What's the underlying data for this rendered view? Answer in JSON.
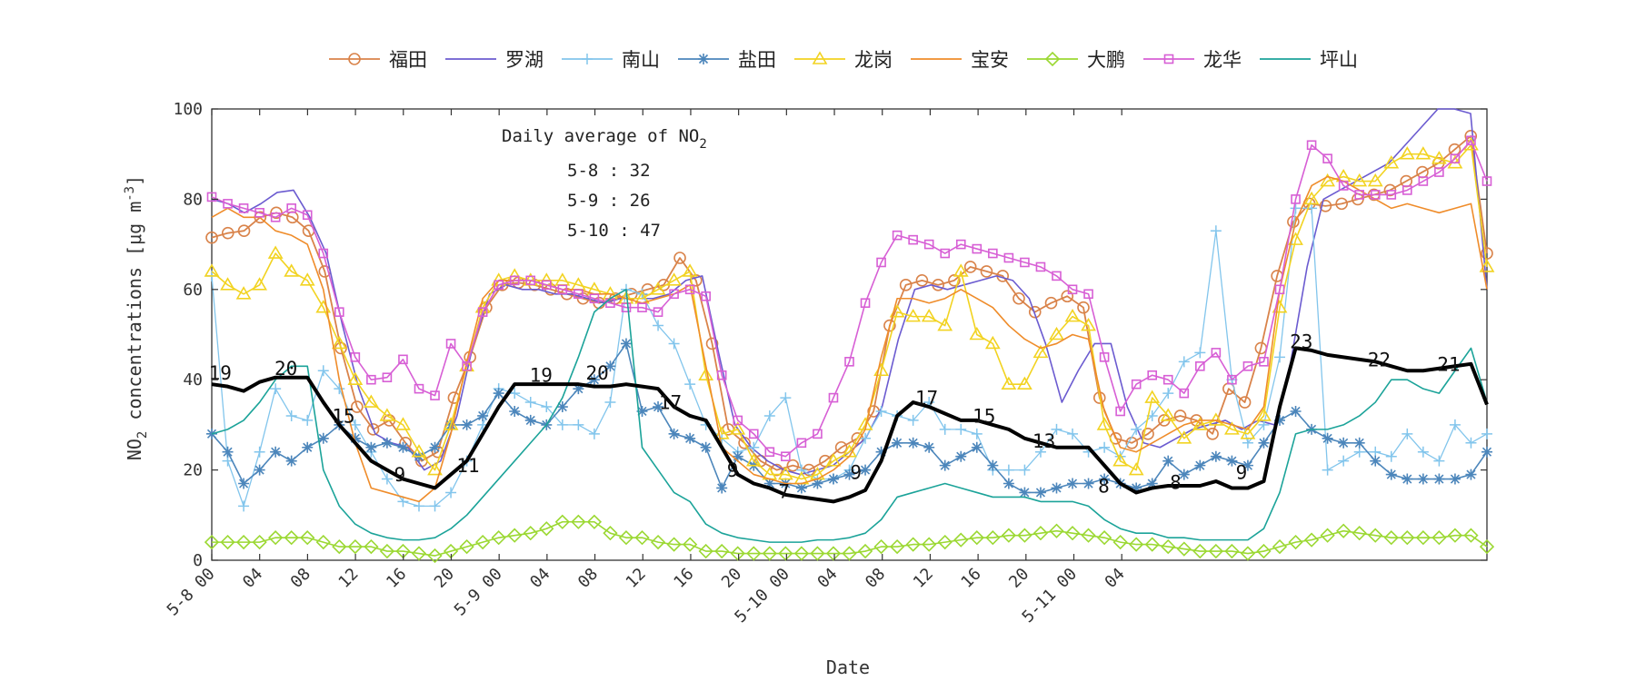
{
  "chart_data": {
    "type": "line",
    "xlabel": "Date",
    "ylabel": "NO2 concentrations [μg m-3]",
    "ylim": [
      0,
      100
    ],
    "yticks": [
      0,
      20,
      40,
      60,
      80,
      100
    ],
    "x_range_hours": [
      0,
      78
    ],
    "xtick_labels": [
      "5-8 00",
      "04",
      "08",
      "12",
      "16",
      "20",
      "5-9 00",
      "04",
      "08",
      "12",
      "16",
      "20",
      "5-10 00",
      "04",
      "08",
      "12",
      "16",
      "20",
      "5-11 00",
      "04"
    ],
    "annotation": {
      "title": "Daily average of NO",
      "title_sub": "2",
      "lines": [
        "5-8 : 32",
        "5-9 : 26",
        "5-10 : 47"
      ]
    },
    "legend": {
      "placement": "top",
      "entries": [
        "福田",
        "罗湖",
        "南山",
        "盐田",
        "龙岗",
        "宝安",
        "大鹏",
        "龙华",
        "坪山"
      ]
    },
    "series": [
      {
        "name": "福田",
        "color": "#d9834a",
        "marker": "circle",
        "width": 1.8,
        "values": [
          71.5,
          72.5,
          73,
          76,
          77,
          76,
          73,
          64,
          47,
          34,
          29,
          31,
          26,
          22,
          24,
          36,
          45,
          56,
          61,
          61.5,
          61,
          60,
          59,
          58,
          57,
          58,
          59,
          60,
          61,
          67,
          62,
          48,
          29,
          26,
          22,
          20,
          21,
          20,
          22,
          25,
          27,
          33,
          52,
          61,
          62,
          61,
          62,
          65,
          64,
          63,
          58,
          55,
          57,
          58.5,
          56,
          36,
          27,
          26,
          28,
          31,
          32,
          31,
          28,
          38,
          35,
          47,
          63,
          75,
          79,
          78.5,
          79,
          80,
          81,
          82,
          84,
          86,
          88,
          91,
          94,
          68
        ]
      },
      {
        "name": "罗湖",
        "color": "#6b5bd0",
        "marker": "none",
        "width": 1.6,
        "values": [
          80,
          79,
          77,
          79,
          81.5,
          82,
          76,
          68,
          52,
          38,
          28,
          26,
          25,
          20,
          22,
          32,
          48,
          59,
          61,
          60,
          60,
          59,
          59,
          58,
          57,
          58,
          58,
          58,
          59,
          62,
          63,
          46,
          30,
          25,
          22,
          20,
          19,
          20,
          21,
          24,
          27,
          34,
          49,
          60,
          61,
          60,
          61,
          62,
          63,
          62,
          58,
          48,
          35,
          42,
          48,
          48,
          34,
          26,
          25,
          27,
          29,
          30,
          31,
          29,
          31,
          30,
          44,
          65,
          80,
          82,
          84,
          86,
          88,
          92,
          96,
          100,
          100,
          99,
          60
        ]
      },
      {
        "name": "南山",
        "color": "#82c5ec",
        "marker": "plus",
        "width": 1.3,
        "values": [
          63,
          22,
          12,
          24,
          38,
          32,
          31,
          42,
          38,
          30,
          24,
          18,
          13,
          12,
          12,
          15,
          22,
          30,
          38,
          37,
          35,
          34,
          30,
          30,
          28,
          35,
          60,
          59,
          52,
          48,
          39,
          30,
          27,
          24,
          25,
          32,
          36,
          20,
          18,
          18,
          20,
          27,
          33,
          32,
          31,
          35,
          29,
          29,
          28,
          20,
          20,
          20,
          24,
          29,
          28,
          24,
          25,
          23,
          29,
          32,
          37,
          44,
          46,
          73,
          40,
          26,
          30,
          45,
          78,
          78,
          20,
          22,
          24,
          24,
          23,
          28,
          24,
          22,
          30,
          26,
          28
        ]
      },
      {
        "name": "盐田",
        "color": "#4c86bb",
        "marker": "asterisk",
        "width": 1.6,
        "values": [
          28,
          24,
          17,
          20,
          24,
          22,
          25,
          27,
          30,
          27,
          25,
          26,
          25,
          23,
          25,
          30,
          30,
          32,
          37,
          33,
          31,
          30,
          34,
          38,
          40,
          43,
          48,
          33,
          34,
          28,
          27,
          25,
          16,
          23,
          21,
          17,
          17,
          16,
          17,
          18,
          19,
          20,
          24,
          26,
          26,
          25,
          21,
          23,
          25,
          21,
          17,
          15,
          15,
          16,
          17,
          17,
          18,
          17,
          16,
          17,
          22,
          19,
          21,
          23,
          22,
          21,
          26,
          31,
          33,
          29,
          27,
          26,
          26,
          22,
          19,
          18,
          18,
          18,
          18,
          19,
          24
        ]
      },
      {
        "name": "龙岗",
        "color": "#f2d321",
        "marker": "triangle",
        "width": 1.6,
        "values": [
          64,
          61,
          59,
          61,
          68,
          64,
          62,
          56,
          48,
          40,
          35,
          32,
          30,
          24,
          20,
          30,
          43,
          56,
          62,
          63,
          62,
          62,
          62,
          61,
          60,
          59,
          58,
          58,
          60,
          62,
          64,
          41,
          28,
          29,
          22,
          19,
          19,
          18,
          19,
          22,
          24,
          30,
          42,
          55,
          54,
          54,
          52,
          64,
          50,
          48,
          39,
          39,
          46,
          50,
          54,
          52,
          30,
          22,
          20,
          36,
          32,
          27,
          30,
          31,
          29,
          28,
          32,
          56,
          71,
          80,
          84,
          85,
          84,
          84,
          88,
          90,
          90,
          89,
          88,
          92,
          65
        ]
      },
      {
        "name": "宝安",
        "color": "#ef8c2a",
        "marker": "none",
        "width": 1.6,
        "values": [
          76,
          78,
          76,
          76,
          73,
          72,
          70,
          60,
          40,
          26,
          16,
          15,
          14,
          13,
          16,
          28,
          44,
          58,
          62,
          62,
          62,
          61,
          60,
          60,
          59,
          59,
          58,
          57,
          58,
          59,
          61,
          43,
          25,
          22,
          19,
          18,
          17,
          17,
          18,
          20,
          23,
          29,
          45,
          58,
          58,
          57,
          58,
          60,
          58,
          56,
          52,
          49,
          47,
          48,
          50,
          49,
          33,
          25,
          24,
          26,
          28,
          30,
          31,
          31,
          30,
          29,
          34,
          60,
          75,
          83,
          85,
          84,
          82,
          80,
          78,
          79,
          78,
          77,
          78,
          79,
          60
        ]
      },
      {
        "name": "大鹏",
        "color": "#9bd832",
        "marker": "diamond",
        "width": 1.6,
        "values": [
          4,
          4,
          4,
          4,
          5,
          5,
          5,
          4,
          3,
          3,
          3,
          2,
          2,
          1.5,
          1,
          2,
          3,
          4,
          5,
          5.5,
          6,
          7,
          8.5,
          8.5,
          8.5,
          6,
          5,
          5,
          4,
          3.5,
          3.5,
          2,
          2,
          1.5,
          1.5,
          1.5,
          1.5,
          1.5,
          1.5,
          1.5,
          1.5,
          2,
          3,
          3,
          3.5,
          3.5,
          4,
          4.5,
          5,
          5,
          5.5,
          5.5,
          6,
          6.5,
          6,
          5.5,
          5,
          4,
          3.5,
          3.5,
          3,
          2.5,
          2,
          2,
          2,
          1.5,
          2,
          3,
          4,
          4.5,
          5.5,
          6.5,
          6,
          5.5,
          5,
          5,
          5,
          5,
          5.5,
          5.5,
          3
        ]
      },
      {
        "name": "龙华",
        "color": "#d75fd5",
        "marker": "square",
        "width": 1.6,
        "values": [
          80.5,
          79,
          78,
          77,
          76,
          78,
          76.5,
          68,
          55,
          45,
          40,
          40.5,
          44.5,
          38,
          36.5,
          48,
          43,
          55,
          61,
          62,
          62,
          61,
          60,
          59,
          58,
          57,
          56,
          56,
          55,
          59,
          60,
          58.5,
          41,
          31,
          28,
          24,
          23,
          26,
          28,
          36,
          44,
          57,
          66,
          72,
          71,
          70,
          68,
          70,
          69,
          68,
          67,
          66,
          65,
          63,
          60,
          59,
          45,
          33,
          39,
          41,
          40,
          37,
          43,
          46,
          40,
          43,
          44,
          60,
          80,
          92,
          89,
          83,
          81,
          81,
          81,
          82,
          84,
          86,
          89,
          93,
          84
        ]
      },
      {
        "name": "坪山",
        "color": "#1ba399",
        "marker": "none",
        "width": 1.6,
        "values": [
          28,
          29,
          31,
          35,
          40,
          43,
          43,
          20,
          12,
          8,
          6,
          5,
          4.5,
          4.5,
          5,
          7,
          10,
          14,
          18,
          22,
          26,
          30,
          36,
          45,
          55,
          58,
          60,
          25,
          20,
          15,
          13,
          8,
          6,
          5,
          4.5,
          4,
          4,
          4,
          4.5,
          4.5,
          5,
          6,
          9,
          14,
          15,
          16,
          17,
          16,
          15,
          14,
          14,
          14,
          13,
          13,
          13,
          12,
          9,
          7,
          6,
          6,
          5,
          5,
          4.5,
          4.5,
          4.5,
          4.5,
          7,
          15,
          28,
          29,
          29,
          30,
          32,
          35,
          40,
          40,
          38,
          37,
          42,
          47,
          35
        ]
      },
      {
        "name": "",
        "color": "#000000",
        "marker": "none",
        "width": 4,
        "values": [
          39,
          38.5,
          37.5,
          39.5,
          40.5,
          40.5,
          40.5,
          35,
          30,
          26,
          22,
          20,
          18,
          17,
          16,
          19,
          22,
          28,
          34,
          39,
          39,
          39,
          39,
          39,
          38.5,
          38.5,
          39,
          38.5,
          38,
          34,
          32,
          31,
          25,
          19,
          17,
          16,
          14.5,
          14,
          13.5,
          13,
          14,
          15.5,
          22,
          32,
          35,
          34,
          32.5,
          31,
          31,
          30,
          29,
          27,
          26,
          25,
          25,
          25,
          21,
          17,
          15,
          16,
          16.5,
          16.5,
          16.5,
          17.5,
          16,
          16,
          17.5,
          34,
          47,
          46.5,
          45.5,
          45,
          44.5,
          44,
          43,
          42,
          42,
          42.5,
          43,
          43.5,
          34.5
        ]
      }
    ],
    "avg_labels": [
      {
        "x": 0.7,
        "y": 40,
        "text": "19"
      },
      {
        "x": 6.2,
        "y": 41,
        "text": "20"
      },
      {
        "x": 11,
        "y": 30.5,
        "text": "15"
      },
      {
        "x": 15.7,
        "y": 17.5,
        "text": "9"
      },
      {
        "x": 21.4,
        "y": 19.5,
        "text": "11"
      },
      {
        "x": 27.5,
        "y": 39.5,
        "text": "19"
      },
      {
        "x": 32.2,
        "y": 40,
        "text": "20"
      },
      {
        "x": 38.3,
        "y": 33.5,
        "text": "17"
      },
      {
        "x": 43.5,
        "y": 18.5,
        "text": "9"
      },
      {
        "x": 47.8,
        "y": 13.8,
        "text": "7"
      },
      {
        "x": 53.8,
        "y": 18,
        "text": "9"
      },
      {
        "x": 59.7,
        "y": 34.5,
        "text": "17"
      },
      {
        "x": 64.5,
        "y": 30.5,
        "text": "15"
      },
      {
        "x": 69.5,
        "y": 25,
        "text": "13"
      },
      {
        "x": 74.5,
        "y": 15,
        "text": "8"
      },
      {
        "x": 80.5,
        "y": 15.8,
        "text": "8"
      },
      {
        "x": 86,
        "y": 18,
        "text": "9"
      },
      {
        "x": 91,
        "y": 47,
        "text": "23"
      },
      {
        "x": 97.5,
        "y": 43,
        "text": "22"
      },
      {
        "x": 103.3,
        "y": 42,
        "text": "21"
      }
    ]
  }
}
